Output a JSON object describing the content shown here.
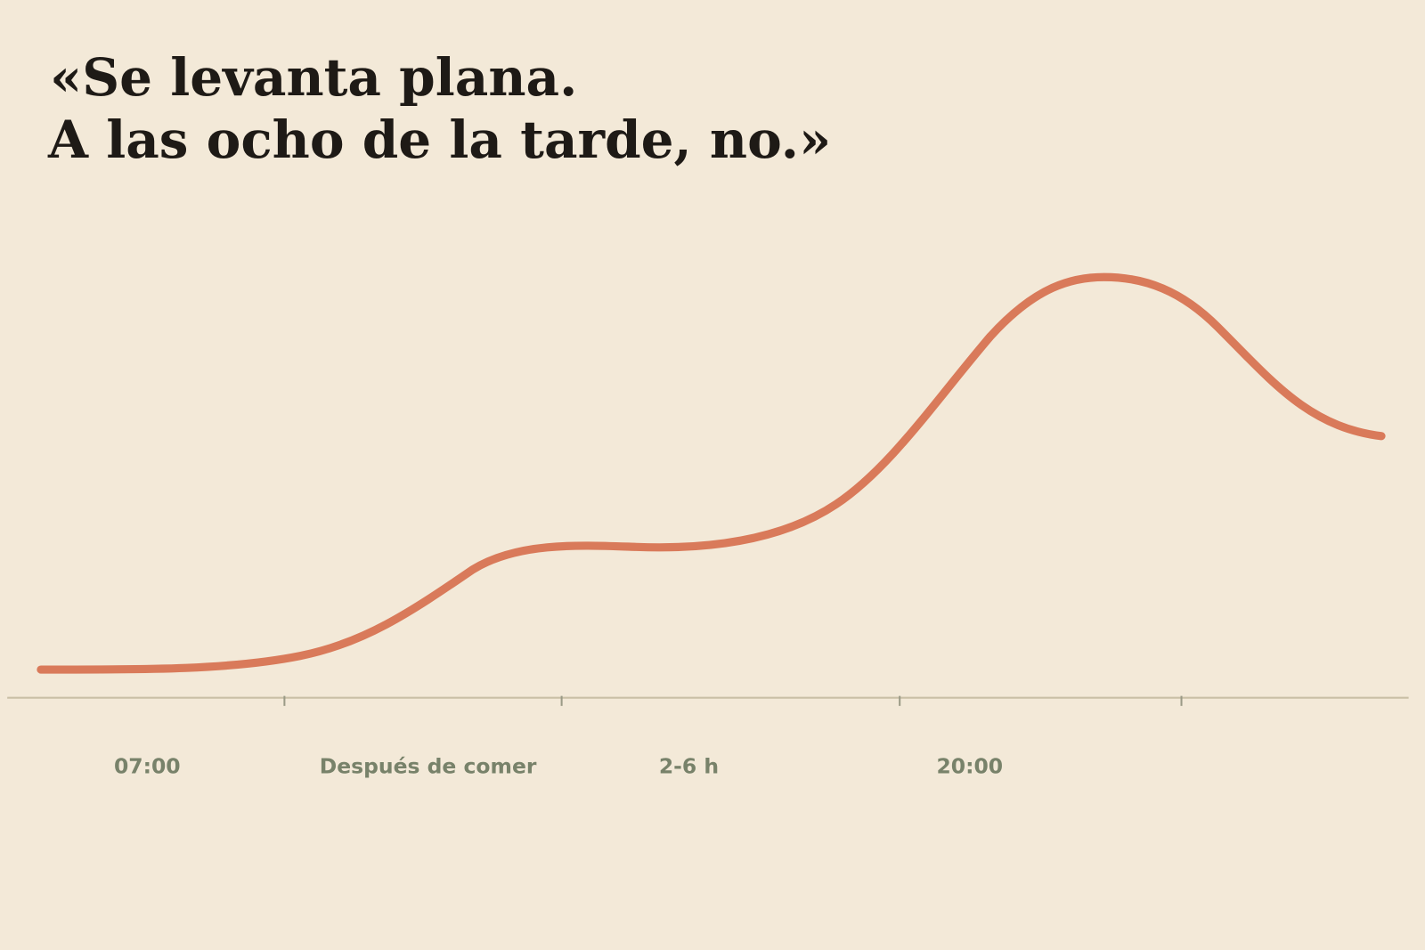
{
  "header": {
    "title_lines": [
      "«Se levanta plana.",
      "A las ocho de la tarde, no.»"
    ]
  },
  "axis": {
    "labels": [
      "07:00",
      "Después de comer",
      "2-6 h",
      "20:00"
    ]
  }
}
